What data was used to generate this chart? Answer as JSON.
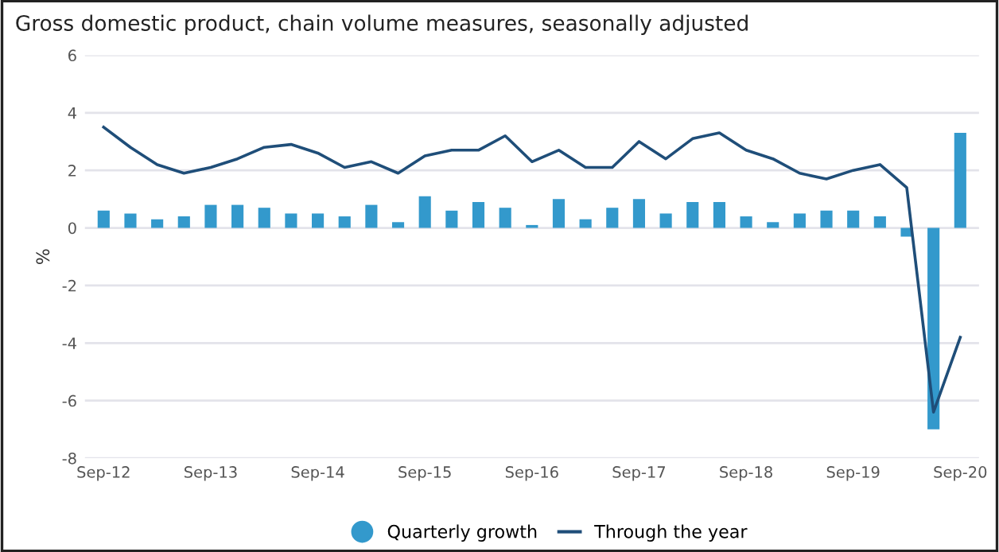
{
  "chart_data": {
    "type": "bar",
    "title": "Gross domestic product, chain volume measures, seasonally adjusted",
    "ylabel": "%",
    "categories": [
      "Sep-12",
      null,
      null,
      null,
      "Sep-13",
      null,
      null,
      null,
      "Sep-14",
      null,
      null,
      null,
      "Sep-15",
      null,
      null,
      null,
      "Sep-16",
      null,
      null,
      null,
      "Sep-17",
      null,
      null,
      null,
      "Sep-18",
      null,
      null,
      null,
      "Sep-19",
      null,
      null,
      null,
      "Sep-20"
    ],
    "series": [
      {
        "name": "Quarterly growth",
        "color": "#3399cc",
        "values": [
          0.6,
          0.5,
          0.3,
          0.4,
          0.8,
          0.8,
          0.7,
          0.5,
          0.5,
          0.4,
          0.8,
          0.2,
          1.1,
          0.6,
          0.9,
          0.7,
          0.1,
          1.0,
          0.3,
          0.7,
          1.0,
          0.5,
          0.9,
          0.9,
          0.4,
          0.2,
          0.5,
          0.6,
          0.6,
          0.4,
          -0.3,
          -7.0,
          3.3
        ]
      },
      {
        "name": "Through the year",
        "type": "line",
        "color": "#1f4e79",
        "values": [
          3.5,
          2.8,
          2.2,
          1.9,
          2.1,
          2.4,
          2.8,
          2.9,
          2.6,
          2.1,
          2.3,
          1.9,
          2.5,
          2.7,
          2.7,
          3.2,
          2.3,
          2.7,
          2.1,
          2.1,
          3.0,
          2.4,
          3.1,
          3.3,
          2.7,
          2.4,
          1.9,
          1.7,
          2.0,
          2.2,
          1.4,
          -6.4,
          -3.8
        ]
      }
    ],
    "ylim": [
      -8,
      6
    ],
    "yticks": [
      -8,
      -6,
      -4,
      -2,
      0,
      2,
      4,
      6
    ],
    "grid": "y",
    "legend": "bottom"
  }
}
